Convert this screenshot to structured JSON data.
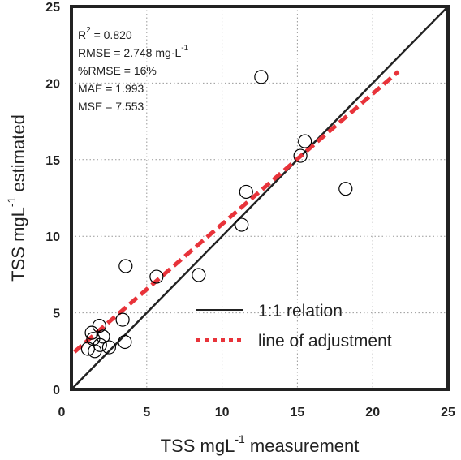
{
  "chart_data": {
    "type": "scatter",
    "x_label": {
      "base": "TSS mgL",
      "sup": "-1",
      "after": " measurement"
    },
    "y_label": {
      "base": "TSS mgL",
      "sup": "-1",
      "after": " estimated"
    },
    "annotations": [
      {
        "base": "R",
        "sup": "2",
        "after": " = 0.820"
      },
      {
        "base": "RMSE = 2.748 mg·L",
        "sup": "-1"
      },
      {
        "base": "%RMSE = 16%"
      },
      {
        "base": "MAE = 1.993"
      },
      {
        "base": "MSE = 7.553"
      }
    ],
    "points": {
      "color": "#000000",
      "x": [
        12.6,
        15.5,
        15.2,
        18.2,
        11.6,
        11.3,
        3.6,
        5.65,
        8.45,
        3.4,
        1.85,
        1.35,
        2.1,
        1.45,
        1.9,
        2.5,
        1.1,
        1.55,
        3.55
      ],
      "y": [
        20.4,
        16.2,
        15.25,
        13.1,
        12.9,
        10.75,
        8.05,
        7.36,
        7.47,
        4.55,
        4.15,
        3.7,
        3.45,
        3.3,
        2.9,
        2.75,
        2.65,
        2.5,
        3.1
      ]
    },
    "series": [
      {
        "name": "1:1 relation",
        "color": "#222222",
        "dashed": false,
        "x": [
          0,
          25
        ],
        "values": [
          0,
          25
        ]
      },
      {
        "name": "line of adjustment",
        "color": "#e8333a",
        "dashed": true,
        "x": [
          0.2,
          21.7
        ],
        "values": [
          2.45,
          20.75
        ]
      }
    ],
    "xlim": [
      0,
      25
    ],
    "ylim": [
      0,
      25
    ],
    "xticks": [
      0,
      5,
      10,
      15,
      20,
      25
    ],
    "yticks": [
      0,
      5,
      10,
      15,
      20,
      25
    ],
    "grid": true,
    "legend": "lower-right"
  }
}
